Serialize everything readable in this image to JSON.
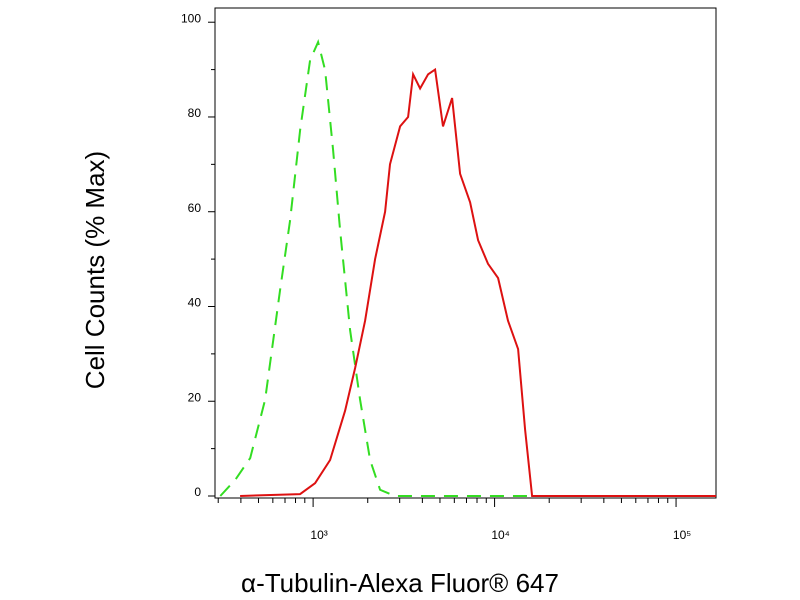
{
  "chart_data": {
    "type": "line",
    "x_label": "α-Tubulin-Alexa Fluor® 647",
    "y_label": "Cell Counts (% Max)",
    "log_x": true,
    "xlim": [
      288,
      166000
    ],
    "ylim": [
      0,
      103
    ],
    "xticks": [
      {
        "value": 1000,
        "label": "10³"
      },
      {
        "value": 10000,
        "label": "10⁴"
      },
      {
        "value": 100000,
        "label": "10⁵"
      }
    ],
    "xminor_ticks": [
      300,
      400,
      500,
      600,
      700,
      800,
      900,
      2000,
      3000,
      4000,
      5000,
      6000,
      7000,
      8000,
      9000,
      20000,
      30000,
      40000,
      50000,
      60000,
      70000,
      80000,
      90000
    ],
    "yticks": [
      0,
      20,
      40,
      60,
      80,
      100
    ],
    "yminor_ticks": [
      10,
      30,
      50,
      70,
      90
    ],
    "series": [
      {
        "color": "#33dd22",
        "dashed": true,
        "x": [
          308,
          372,
          450,
          544,
          658,
          747,
          848,
          963,
          1065,
          1165,
          1289,
          1408,
          1599,
          1815,
          2061,
          2339,
          2831,
          17800
        ],
        "values": [
          0,
          3.4,
          8.0,
          20.3,
          43.5,
          58.2,
          77.2,
          92,
          95.8,
          89.9,
          73,
          56.1,
          35,
          20.3,
          7.6,
          1.3,
          0,
          0
        ]
      },
      {
        "color": "#dd1111",
        "dashed": false,
        "x": [
          396,
          848,
          1026,
          1241,
          1501,
          1703,
          1935,
          2197,
          2494,
          2654,
          3014,
          3337,
          3556,
          3887,
          4303,
          4701,
          5200,
          5834,
          6456,
          7330,
          8110,
          9204,
          10450,
          11860,
          13470,
          14720,
          16100,
          166000
        ],
        "values": [
          0,
          0.4,
          2.7,
          7.6,
          18,
          27,
          37,
          50,
          60,
          70,
          78,
          80,
          89,
          86,
          89,
          90,
          78,
          84,
          68,
          62,
          54,
          49,
          46,
          37,
          31,
          14,
          0,
          0
        ]
      }
    ]
  }
}
